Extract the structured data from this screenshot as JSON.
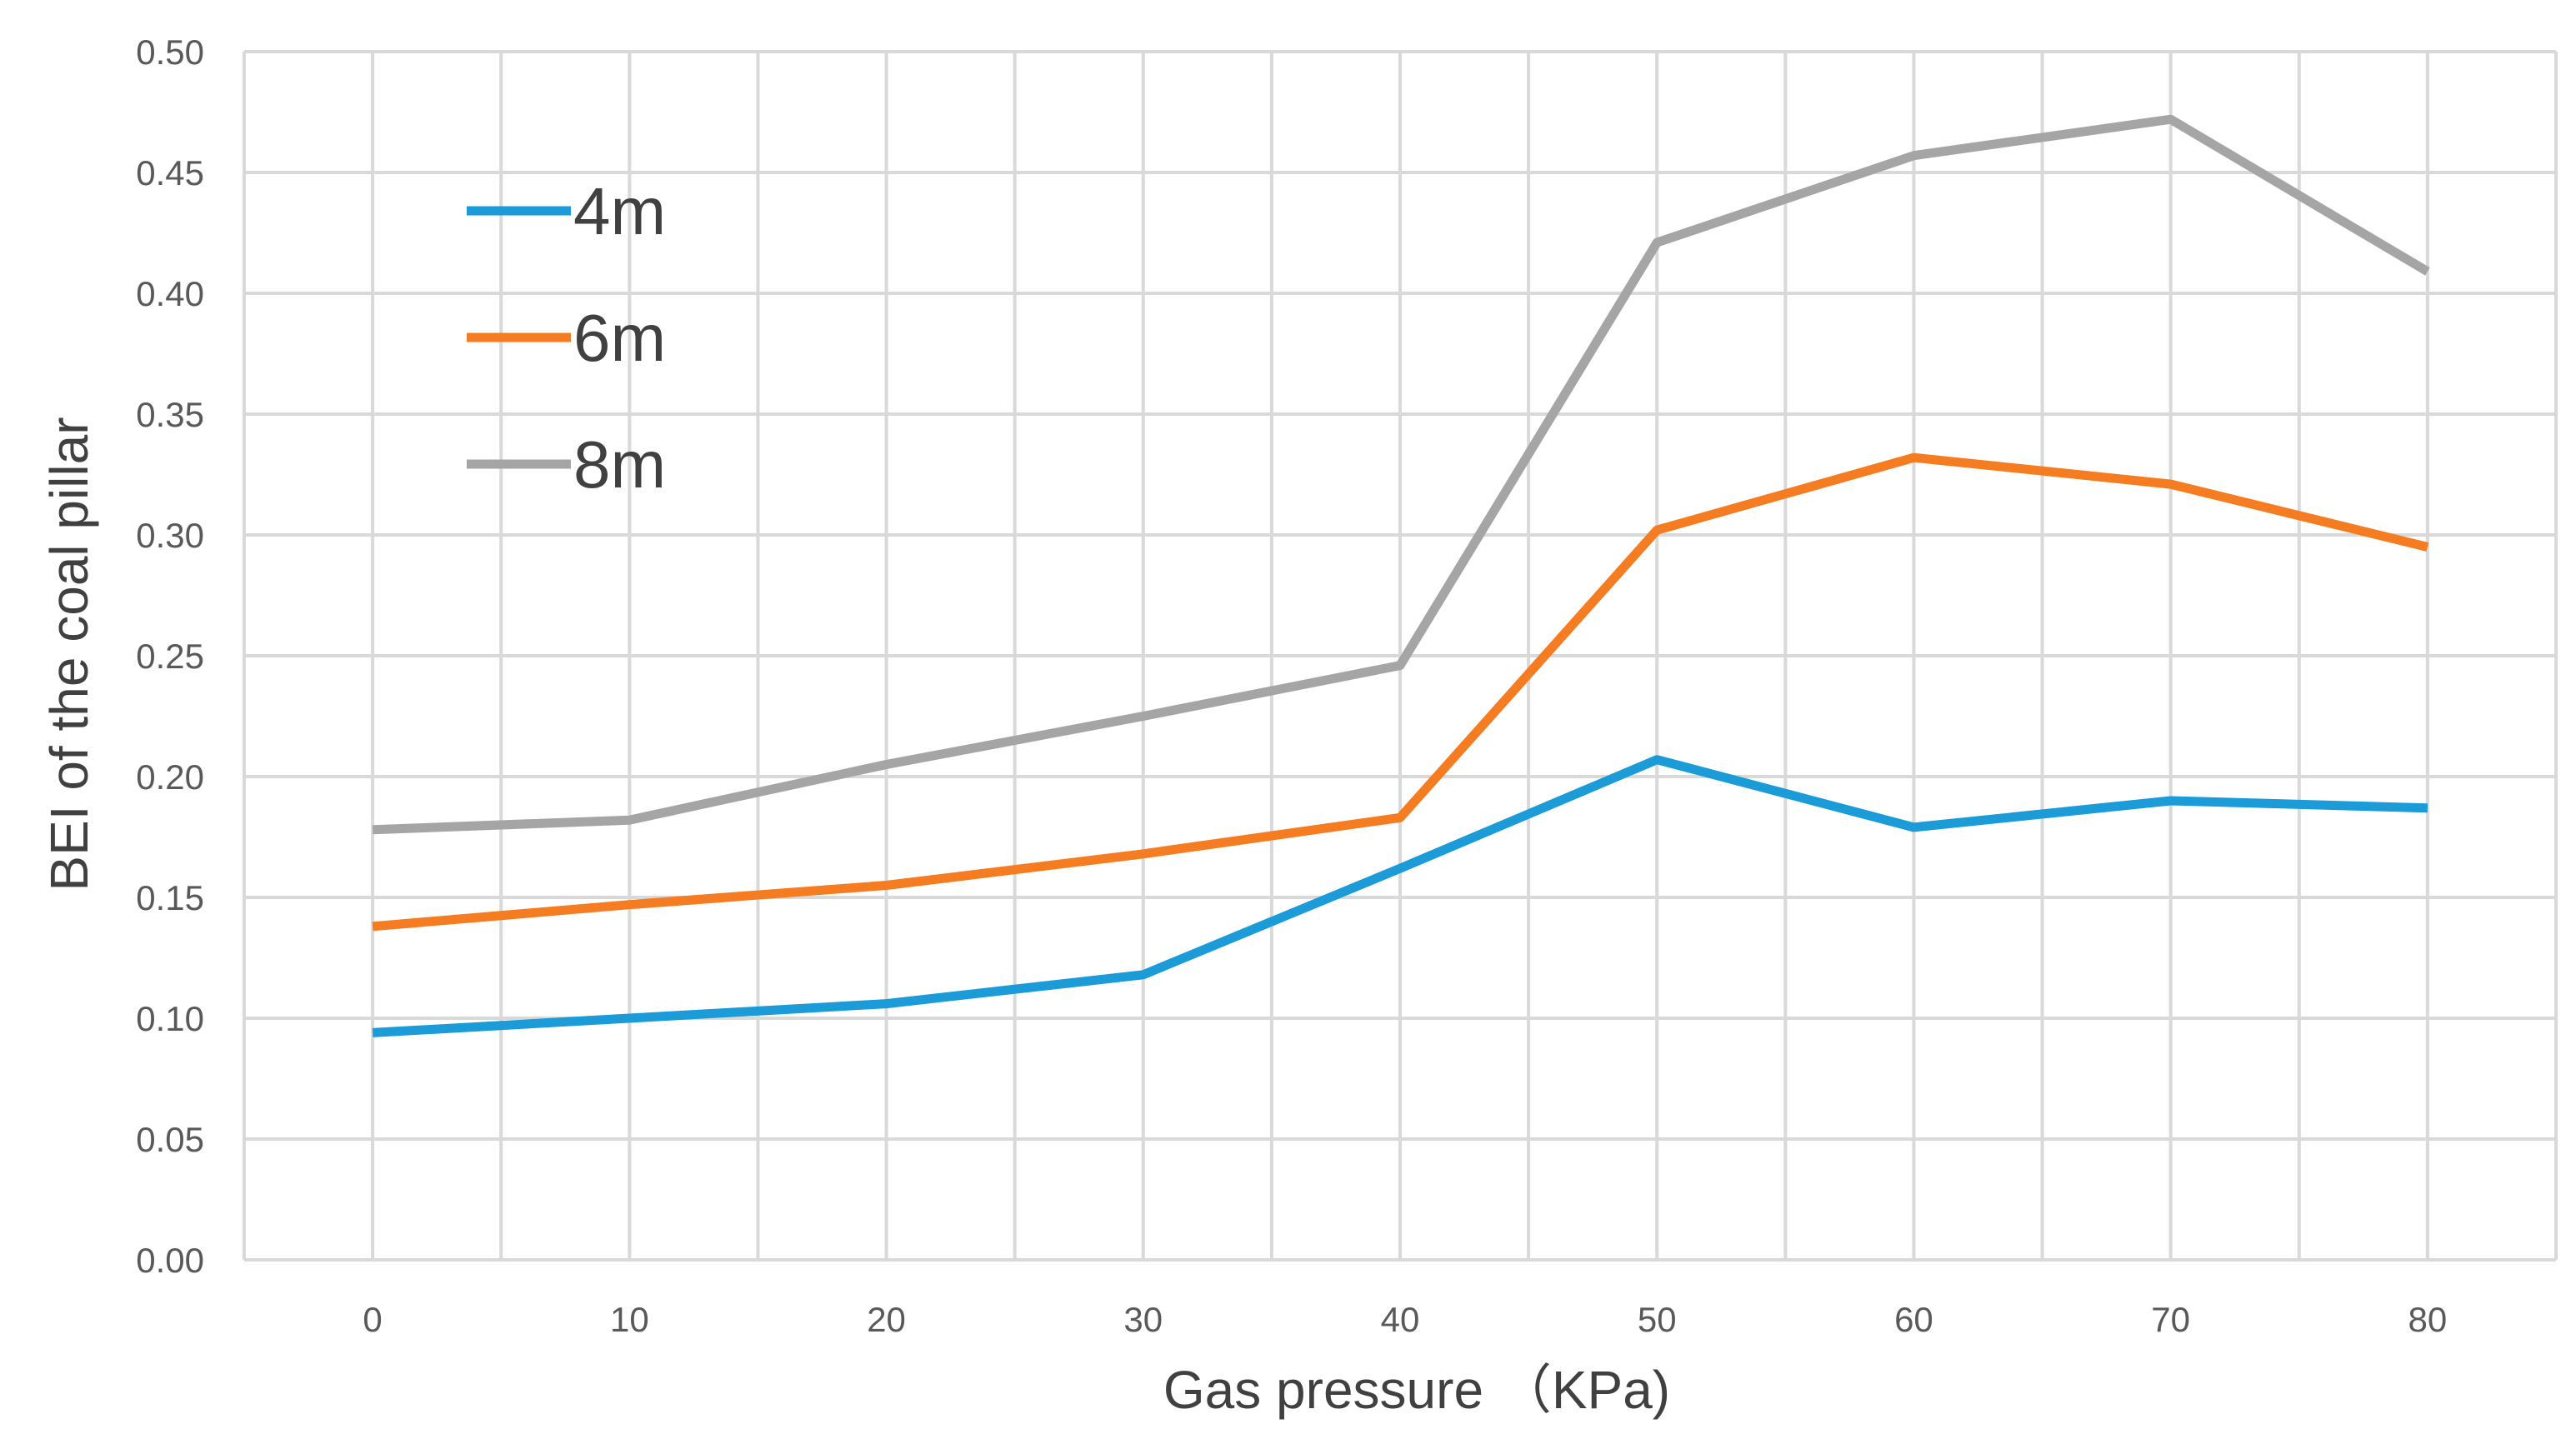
{
  "chart_data": {
    "type": "line",
    "title": "",
    "xlabel": "Gas pressure （KPa)",
    "ylabel": "BEI of the coal pillar",
    "x": [
      0,
      10,
      20,
      30,
      40,
      50,
      60,
      70,
      80
    ],
    "x_tick_labels": [
      "0",
      "10",
      "20",
      "30",
      "40",
      "50",
      "60",
      "70",
      "80"
    ],
    "ylim": [
      0,
      0.5
    ],
    "y_tick_labels": [
      "0.00",
      "0.05",
      "0.10",
      "0.15",
      "0.20",
      "0.25",
      "0.30",
      "0.35",
      "0.40",
      "0.45",
      "0.50"
    ],
    "grid": true,
    "legend_position": "top-left",
    "series": [
      {
        "name": "4m",
        "color": "#1b9bd7",
        "values": [
          0.094,
          0.1,
          0.106,
          0.118,
          0.162,
          0.207,
          0.179,
          0.19,
          0.187
        ]
      },
      {
        "name": "6m",
        "color": "#f57c20",
        "values": [
          0.138,
          0.147,
          0.155,
          0.168,
          0.183,
          0.302,
          0.332,
          0.321,
          0.295
        ]
      },
      {
        "name": "8m",
        "color": "#a5a5a5",
        "values": [
          0.178,
          0.182,
          0.205,
          0.225,
          0.246,
          0.421,
          0.457,
          0.472,
          0.409
        ]
      }
    ]
  }
}
